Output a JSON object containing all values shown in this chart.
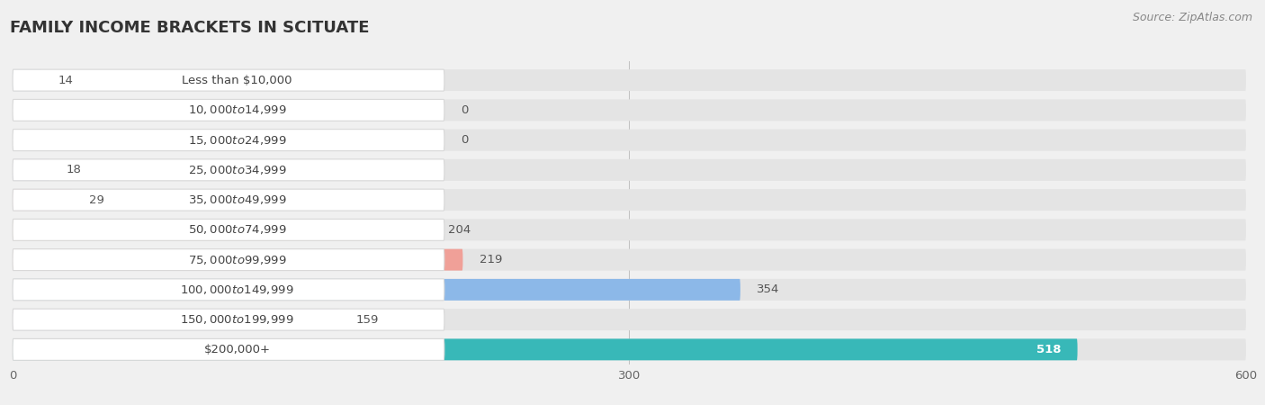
{
  "title": "FAMILY INCOME BRACKETS IN SCITUATE",
  "source": "Source: ZipAtlas.com",
  "categories": [
    "Less than $10,000",
    "$10,000 to $14,999",
    "$15,000 to $24,999",
    "$25,000 to $34,999",
    "$35,000 to $49,999",
    "$50,000 to $74,999",
    "$75,000 to $99,999",
    "$100,000 to $149,999",
    "$150,000 to $199,999",
    "$200,000+"
  ],
  "values": [
    14,
    0,
    0,
    18,
    29,
    204,
    219,
    354,
    159,
    518
  ],
  "bar_colors": [
    "#a8d0e8",
    "#d4a8cc",
    "#70c8c4",
    "#b4aee0",
    "#f4a0b8",
    "#f4c48c",
    "#f0a098",
    "#8cb8e8",
    "#c4a8d4",
    "#38b8b8"
  ],
  "xlim_data": 600,
  "xticks": [
    0,
    300,
    600
  ],
  "bg_color": "#f0f0f0",
  "bar_row_bg": "#e4e4e4",
  "white_label_bg": "#ffffff",
  "title_fontsize": 13,
  "label_fontsize": 9.5,
  "value_fontsize": 9.5,
  "source_fontsize": 9
}
